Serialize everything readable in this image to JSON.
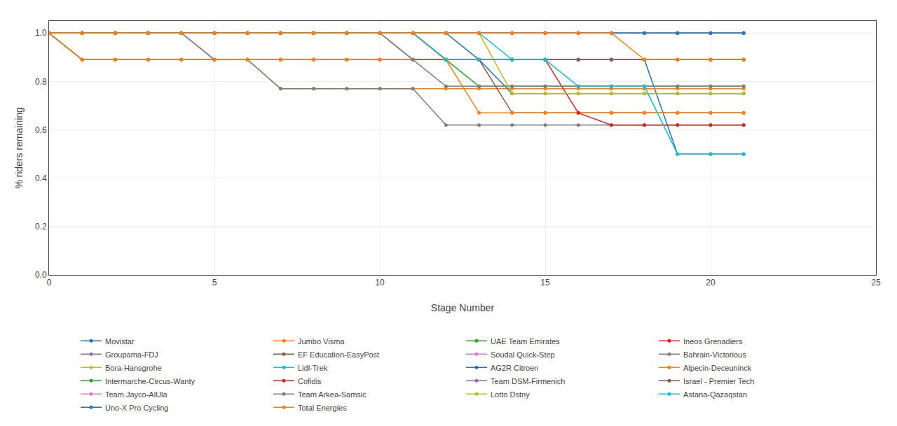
{
  "chart_data": {
    "type": "line",
    "xlabel": "Stage Number",
    "ylabel": "% riders remaining",
    "xlim": [
      0,
      25
    ],
    "ylim": [
      0,
      1.05
    ],
    "xticks": [
      0,
      5,
      10,
      15,
      20,
      25
    ],
    "yticks": [
      {
        "value": 0,
        "label": "0.0"
      },
      0.2,
      0.4,
      0.6,
      0.8,
      {
        "value": 1.0,
        "label": "1.0"
      }
    ],
    "grid": true,
    "legend": "bottom",
    "marker": "circle",
    "line_style": "solid",
    "x": [
      0,
      1,
      2,
      3,
      4,
      5,
      6,
      7,
      8,
      9,
      10,
      11,
      12,
      13,
      14,
      15,
      16,
      17,
      18,
      19,
      20,
      21
    ],
    "series": [
      {
        "name": "Movistar",
        "values": [
          1.0,
          0.89,
          0.89,
          0.89,
          0.89,
          0.89,
          0.89,
          0.89,
          0.89,
          0.89,
          0.89,
          0.89,
          0.89,
          0.89,
          0.89,
          0.89,
          0.89,
          0.89,
          0.89,
          0.5,
          0.5,
          0.5
        ]
      },
      {
        "name": "Jumbo Visma",
        "values": [
          1.0,
          1.0,
          1.0,
          1.0,
          1.0,
          0.89,
          0.89,
          0.77,
          0.77,
          0.77,
          0.77,
          0.77,
          0.77,
          0.77,
          0.77,
          0.77,
          0.77,
          0.77,
          0.77,
          0.77,
          0.77,
          0.77
        ]
      },
      {
        "name": "UAE Team Emirates",
        "values": [
          1.0,
          1.0,
          1.0,
          1.0,
          1.0,
          1.0,
          1.0,
          1.0,
          1.0,
          1.0,
          1.0,
          1.0,
          1.0,
          1.0,
          1.0,
          1.0,
          1.0,
          1.0,
          1.0,
          1.0,
          1.0,
          1.0
        ]
      },
      {
        "name": "Ineos Grenadiers",
        "values": [
          1.0,
          1.0,
          1.0,
          1.0,
          1.0,
          1.0,
          1.0,
          1.0,
          1.0,
          1.0,
          1.0,
          1.0,
          0.89,
          0.89,
          0.89,
          0.89,
          0.89,
          0.89,
          0.89,
          0.89,
          0.89,
          0.89
        ]
      },
      {
        "name": "Groupama-FDJ",
        "values": [
          1.0,
          1.0,
          1.0,
          1.0,
          1.0,
          1.0,
          1.0,
          1.0,
          1.0,
          1.0,
          1.0,
          1.0,
          1.0,
          1.0,
          1.0,
          1.0,
          1.0,
          1.0,
          1.0,
          1.0,
          1.0,
          1.0
        ]
      },
      {
        "name": "EF Education-EasyPost",
        "values": [
          1.0,
          0.89,
          0.89,
          0.89,
          0.89,
          0.89,
          0.89,
          0.89,
          0.89,
          0.89,
          0.89,
          0.89,
          0.89,
          0.89,
          0.67,
          0.67,
          0.67,
          0.67,
          0.67,
          0.67,
          0.67,
          0.67
        ]
      },
      {
        "name": "Soudal Quick-Step",
        "values": [
          1.0,
          1.0,
          1.0,
          1.0,
          1.0,
          0.89,
          0.89,
          0.89,
          0.89,
          0.89,
          0.89,
          0.89,
          0.89,
          0.89,
          0.89,
          0.89,
          0.89,
          0.89,
          0.89,
          0.89,
          0.89,
          0.89
        ]
      },
      {
        "name": "Bahrain-Victorious",
        "values": [
          1.0,
          1.0,
          1.0,
          1.0,
          1.0,
          0.89,
          0.89,
          0.77,
          0.77,
          0.77,
          0.77,
          0.77,
          0.62,
          0.62,
          0.62,
          0.62,
          0.62,
          0.62,
          0.62,
          0.62,
          0.62,
          0.62
        ]
      },
      {
        "name": "Bora-Hansgrohe",
        "values": [
          1.0,
          1.0,
          1.0,
          1.0,
          1.0,
          1.0,
          1.0,
          1.0,
          1.0,
          1.0,
          1.0,
          1.0,
          1.0,
          1.0,
          1.0,
          1.0,
          1.0,
          1.0,
          1.0,
          1.0,
          1.0,
          1.0
        ]
      },
      {
        "name": "Lidl-Trek",
        "values": [
          1.0,
          1.0,
          1.0,
          1.0,
          1.0,
          1.0,
          1.0,
          1.0,
          1.0,
          1.0,
          1.0,
          1.0,
          1.0,
          1.0,
          0.89,
          0.89,
          0.89,
          0.89,
          0.89,
          0.89,
          0.89,
          0.89
        ]
      },
      {
        "name": "AG2R Citroen",
        "values": [
          1.0,
          1.0,
          1.0,
          1.0,
          1.0,
          1.0,
          1.0,
          1.0,
          1.0,
          1.0,
          1.0,
          1.0,
          1.0,
          0.89,
          0.75,
          0.75,
          0.75,
          0.75,
          0.75,
          0.75,
          0.75,
          0.75
        ]
      },
      {
        "name": "Alpecin-Deceuninck",
        "values": [
          1.0,
          0.89,
          0.89,
          0.89,
          0.89,
          0.89,
          0.89,
          0.89,
          0.89,
          0.89,
          0.89,
          0.89,
          0.89,
          0.67,
          0.67,
          0.67,
          0.67,
          0.67,
          0.67,
          0.67,
          0.67,
          0.67
        ]
      },
      {
        "name": "Intermarche-Circus-Wanty",
        "values": [
          1.0,
          1.0,
          1.0,
          1.0,
          1.0,
          1.0,
          1.0,
          1.0,
          1.0,
          1.0,
          1.0,
          1.0,
          0.89,
          0.78,
          0.78,
          0.78,
          0.78,
          0.78,
          0.78,
          0.78,
          0.78,
          0.78
        ]
      },
      {
        "name": "Cofidis",
        "values": [
          1.0,
          1.0,
          1.0,
          1.0,
          1.0,
          1.0,
          1.0,
          1.0,
          1.0,
          1.0,
          1.0,
          1.0,
          0.89,
          0.89,
          0.89,
          0.89,
          0.67,
          0.62,
          0.62,
          0.62,
          0.62,
          0.62
        ]
      },
      {
        "name": "Team DSM-Firmenich",
        "values": [
          1.0,
          1.0,
          1.0,
          1.0,
          1.0,
          1.0,
          1.0,
          1.0,
          1.0,
          1.0,
          1.0,
          1.0,
          1.0,
          1.0,
          1.0,
          1.0,
          1.0,
          1.0,
          1.0,
          1.0,
          1.0,
          1.0
        ]
      },
      {
        "name": "Israel - Premier Tech",
        "values": [
          1.0,
          1.0,
          1.0,
          1.0,
          1.0,
          1.0,
          1.0,
          1.0,
          1.0,
          1.0,
          1.0,
          0.89,
          0.89,
          0.89,
          0.89,
          0.89,
          0.89,
          0.89,
          0.89,
          0.89,
          0.89,
          0.89
        ]
      },
      {
        "name": "Team Jayco-AlUla",
        "values": [
          1.0,
          1.0,
          1.0,
          1.0,
          1.0,
          1.0,
          1.0,
          1.0,
          1.0,
          1.0,
          1.0,
          1.0,
          1.0,
          1.0,
          1.0,
          1.0,
          1.0,
          1.0,
          1.0,
          1.0,
          1.0,
          1.0
        ]
      },
      {
        "name": "Team Arkea-Samsic",
        "values": [
          1.0,
          1.0,
          1.0,
          1.0,
          1.0,
          1.0,
          1.0,
          1.0,
          1.0,
          1.0,
          1.0,
          0.89,
          0.78,
          0.78,
          0.78,
          0.78,
          0.78,
          0.78,
          0.78,
          0.78,
          0.78,
          0.78
        ]
      },
      {
        "name": "Lotto Dstny",
        "values": [
          1.0,
          1.0,
          1.0,
          1.0,
          1.0,
          1.0,
          1.0,
          1.0,
          1.0,
          1.0,
          1.0,
          1.0,
          1.0,
          1.0,
          0.75,
          0.75,
          0.75,
          0.75,
          0.75,
          0.75,
          0.75,
          0.75
        ]
      },
      {
        "name": "Astana-Qazaqstan",
        "values": [
          1.0,
          1.0,
          1.0,
          1.0,
          1.0,
          1.0,
          1.0,
          1.0,
          1.0,
          1.0,
          1.0,
          1.0,
          0.89,
          0.89,
          0.89,
          0.89,
          0.78,
          0.78,
          0.78,
          0.5,
          0.5,
          0.5
        ]
      },
      {
        "name": "Uno-X Pro Cycling",
        "values": [
          1.0,
          1.0,
          1.0,
          1.0,
          1.0,
          1.0,
          1.0,
          1.0,
          1.0,
          1.0,
          1.0,
          1.0,
          1.0,
          1.0,
          1.0,
          1.0,
          1.0,
          1.0,
          1.0,
          1.0,
          1.0,
          1.0
        ]
      },
      {
        "name": "Total Energies",
        "values": [
          1.0,
          1.0,
          1.0,
          1.0,
          1.0,
          1.0,
          1.0,
          1.0,
          1.0,
          1.0,
          1.0,
          1.0,
          1.0,
          1.0,
          1.0,
          1.0,
          1.0,
          1.0,
          0.89,
          0.89,
          0.89,
          0.89
        ]
      }
    ]
  }
}
